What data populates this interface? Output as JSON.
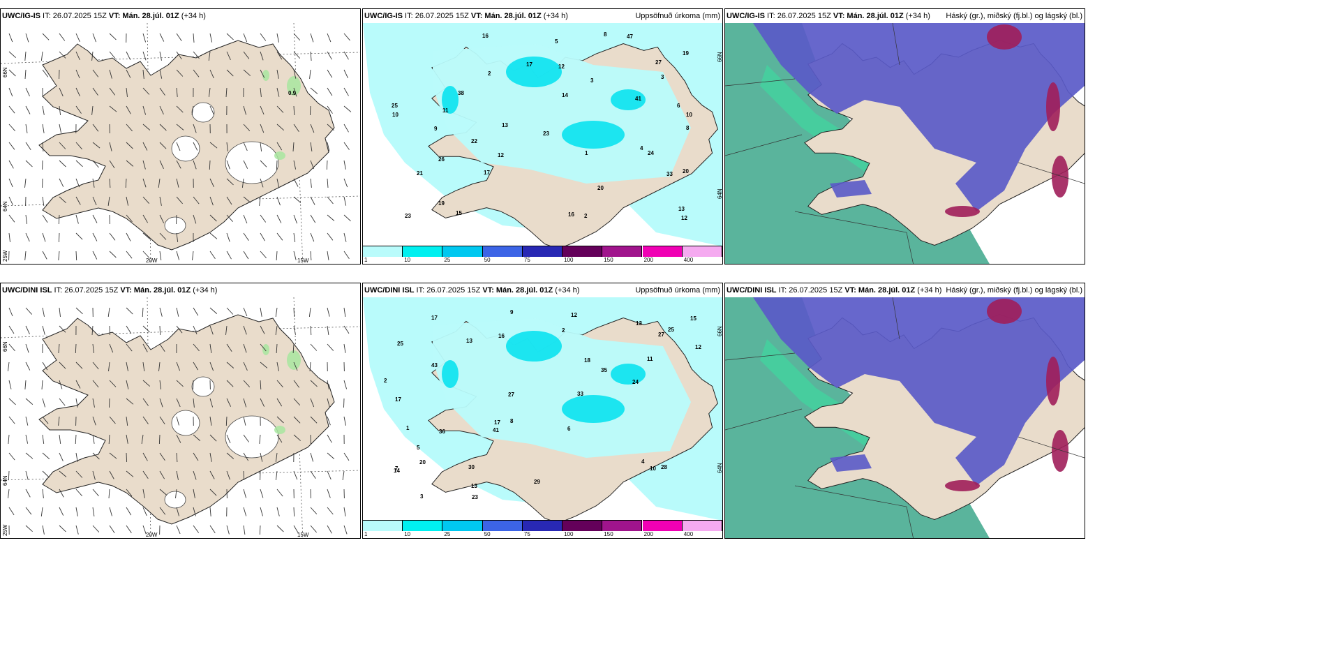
{
  "rows": [
    {
      "panels": [
        {
          "model": "UWC/IG-IS",
          "it": " IT: 26.07.2025 15Z ",
          "vt": "VT: Mán. 28.júl. 01Z",
          "lead": " (+34 h)",
          "right": ""
        },
        {
          "model": "UWC/IG-IS",
          "it": " IT: 26.07.2025 15Z ",
          "vt": "VT: Mán. 28.júl. 01Z",
          "lead": " (+34 h)",
          "right": "Uppsöfnuð úrkoma (mm)"
        },
        {
          "model": "UWC/IG-IS",
          "it": " IT: 26.07.2025 15Z ",
          "vt": "VT: Mán. 28.júl. 01Z",
          "lead": " (+34 h)",
          "right": "Háský (gr.), miðský (fj.bl.) og lágský (bl.)"
        }
      ]
    },
    {
      "panels": [
        {
          "model": "UWC/DINI ISL",
          "it": " IT: 26.07.2025 15Z ",
          "vt": "VT: Mán. 28.júl. 01Z",
          "lead": " (+34 h)",
          "right": ""
        },
        {
          "model": "UWC/DINI ISL",
          "it": " IT: 26.07.2025 15Z ",
          "vt": "VT: Mán. 28.júl. 01Z",
          "lead": " (+34 h)",
          "right": "Uppsöfnuð úrkoma (mm)"
        },
        {
          "model": "UWC/DINI ISL",
          "it": " IT: 26.07.2025 15Z ",
          "vt": "VT: Mán. 28.júl. 01Z",
          "lead": " (+34 h)",
          "right": "Háský (gr.), miðský (fj.bl.) og lágský (bl.)"
        }
      ]
    }
  ],
  "coords": {
    "lat66": "66N",
    "lat64": "64N",
    "lon25": "25W",
    "lon20": "20W",
    "lon15": "15W"
  },
  "wind_labels": {
    "top": "0.9"
  },
  "colorbar": {
    "labels": [
      "1",
      "10",
      "25",
      "50",
      "75",
      "100",
      "150",
      "200",
      "400"
    ],
    "colors": [
      "#b9fbfb",
      "#00f0f0",
      "#00c8f0",
      "#3c64e6",
      "#2828b4",
      "#64005a",
      "#a0148c",
      "#f000b4",
      "#f5aaf0"
    ]
  },
  "colors": {
    "land": "#e9dccb",
    "precip_light": "#b9fbfb",
    "precip_mid": "#00e0ee",
    "high_cloud": "#5ab49c",
    "mid_cloud": "#5a5ac8",
    "low_cloud": "#a01e5a"
  },
  "precip_numbers": {
    "top": [
      "2",
      "6",
      "3",
      "10",
      "13",
      "20",
      "12",
      "8",
      "33",
      "27",
      "38",
      "24",
      "41",
      "17",
      "21",
      "23",
      "22",
      "25",
      "16",
      "17",
      "13",
      "12",
      "19",
      "26",
      "14",
      "47",
      "23",
      "20",
      "16",
      "19",
      "15",
      "12",
      "9",
      "5",
      "11",
      "10",
      "8",
      "1",
      "3",
      "4",
      "2"
    ],
    "bottom": [
      "2",
      "12",
      "12",
      "16",
      "13",
      "25",
      "17",
      "27",
      "18",
      "13",
      "23",
      "20",
      "14",
      "30",
      "13",
      "24",
      "35",
      "17",
      "27",
      "28",
      "43",
      "33",
      "36",
      "29",
      "41",
      "25",
      "17",
      "9",
      "8",
      "5",
      "3",
      "2",
      "1",
      "4",
      "7",
      "6",
      "10",
      "11",
      "15"
    ]
  }
}
